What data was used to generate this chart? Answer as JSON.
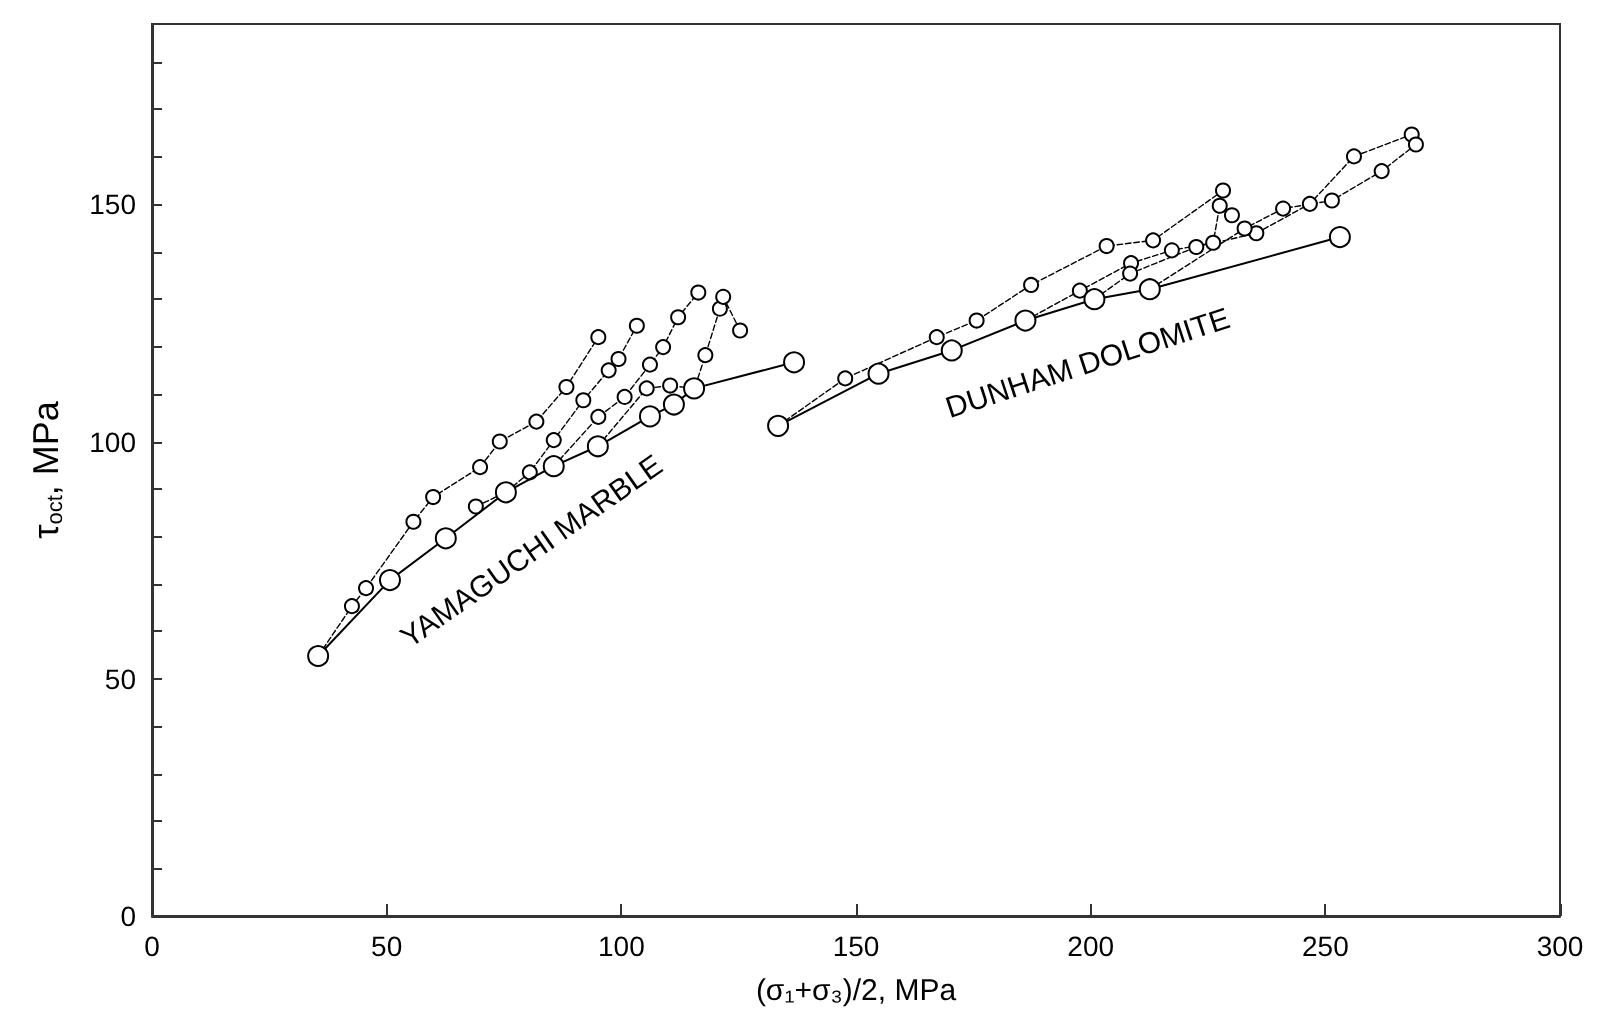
{
  "chart_data": {
    "type": "line",
    "xlabel": "(σ₁+σ₃)/2, MPa",
    "ylabel": "τ$_{oct}$, MPa",
    "xlim": [
      0,
      300
    ],
    "xticks": [
      0,
      50,
      100,
      150,
      200,
      250,
      300
    ],
    "ylim": [
      0,
      188
    ],
    "yticks": [
      0,
      {
        "value": 10,
        "label": null
      },
      {
        "value": 20,
        "label": null
      },
      {
        "value": 30,
        "label": null
      },
      {
        "value": 40,
        "label": null
      },
      50,
      {
        "value": 60,
        "label": null
      },
      {
        "value": 70,
        "label": null
      },
      {
        "value": 80,
        "label": null
      },
      {
        "value": 90,
        "label": null
      },
      100,
      {
        "value": 110,
        "label": null
      },
      {
        "value": 120,
        "label": null
      },
      {
        "value": 130,
        "label": null
      },
      {
        "value": 140,
        "label": null
      },
      150,
      {
        "value": 160,
        "label": null
      },
      {
        "value": 170,
        "label": null
      },
      {
        "value": 180,
        "label": null
      }
    ],
    "grid": false,
    "marker": "circle",
    "series": [
      {
        "color": "#000000",
        "line_style": "solid",
        "x": [
          35.4,
          50.7,
          62.6,
          75.4,
          85.6,
          95.0,
          106.1,
          111.2,
          115.5,
          136.8
        ],
        "values": [
          54.8,
          70.8,
          79.6,
          89.3,
          94.8,
          99.0,
          105.3,
          107.8,
          111.2,
          116.7
        ]
      },
      {
        "color": "#000000",
        "line_style": "dashed",
        "x": [
          35.4,
          42.6,
          45.6,
          55.7,
          59.9,
          69.9,
          74.1,
          81.9,
          88.3,
          95.1
        ],
        "values": [
          54.8,
          65.3,
          69.1,
          83.1,
          88.3,
          94.6,
          100.0,
          104.2,
          111.5,
          122.0
        ]
      },
      {
        "color": "#000000",
        "line_style": "dashed",
        "x": [
          69.0,
          75.4,
          80.5,
          85.6,
          91.9,
          97.3,
          99.4,
          103.3
        ],
        "values": [
          86.3,
          89.3,
          93.5,
          100.3,
          108.7,
          115.0,
          117.4,
          124.4
        ]
      },
      {
        "color": "#000000",
        "line_style": "dashed",
        "x": [
          85.6,
          95.1,
          100.7,
          106.1,
          108.9,
          112.1,
          116.4
        ],
        "values": [
          94.8,
          105.2,
          109.4,
          116.2,
          119.9,
          126.2,
          131.4
        ]
      },
      {
        "color": "#000000",
        "line_style": "dashed",
        "x": [
          95.0,
          105.4,
          110.4,
          115.6,
          117.9,
          121.0,
          121.7,
          125.3
        ],
        "values": [
          99.0,
          111.2,
          111.8,
          111.2,
          118.2,
          128.0,
          130.5,
          123.4
        ]
      },
      {
        "color": "#000000",
        "line_style": "solid",
        "x": [
          133.4,
          154.8,
          170.4,
          186.1,
          200.8,
          212.6,
          253.1
        ],
        "values": [
          103.3,
          114.3,
          119.2,
          125.5,
          130.0,
          132.1,
          143.1
        ]
      },
      {
        "color": "#000000",
        "line_style": "dashed",
        "x": [
          133.4,
          147.7,
          167.2,
          175.7,
          187.3,
          203.4,
          213.3,
          228.2
        ],
        "values": [
          103.3,
          113.3,
          122.0,
          125.5,
          133.0,
          141.2,
          142.4,
          152.9
        ]
      },
      {
        "color": "#000000",
        "line_style": "dashed",
        "x": [
          186.1,
          197.7,
          208.6,
          217.3,
          226.1,
          227.5,
          230.1
        ],
        "values": [
          125.5,
          131.8,
          137.6,
          140.3,
          141.9,
          149.7,
          147.7
        ]
      },
      {
        "color": "#000000",
        "line_style": "dashed",
        "x": [
          200.8,
          208.4,
          222.5,
          235.3,
          246.7,
          256.1,
          268.4
        ],
        "values": [
          130.0,
          135.4,
          141.0,
          143.9,
          150.1,
          160.1,
          164.7
        ]
      },
      {
        "color": "#000000",
        "line_style": "dashed",
        "x": [
          212.6,
          232.8,
          241.0,
          251.4,
          262.0,
          269.3
        ],
        "values": [
          132.1,
          144.9,
          149.1,
          150.8,
          157.0,
          162.6
        ]
      }
    ],
    "annotations": [
      "YAMAGUCHI MARBLE",
      "DUNHAM DOLOMITE"
    ]
  }
}
